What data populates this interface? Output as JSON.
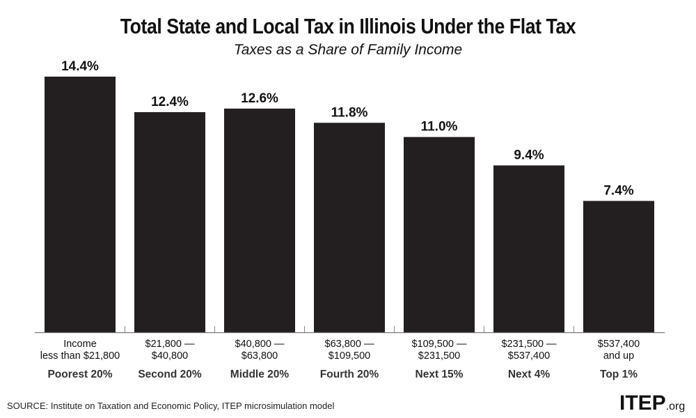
{
  "chart_data": {
    "type": "bar",
    "title": "Total State and Local Tax in Illinois Under the Flat Tax",
    "subtitle": "Taxes as a Share of Family Income",
    "categories": [
      "Income\nless than $21,800",
      "$21,800 —\n$40,800",
      "$40,800 —\n$63,800",
      "$63,800 —\n$109,500",
      "$109,500 —\n$231,500",
      "$231,500 —\n$537,400",
      "$537,400\nand up"
    ],
    "groups": [
      "Poorest 20%",
      "Second 20%",
      "Middle 20%",
      "Fourth 20%",
      "Next 15%",
      "Next 4%",
      "Top 1%"
    ],
    "values": [
      14.4,
      12.4,
      12.6,
      11.8,
      11.0,
      9.4,
      7.4
    ],
    "data_labels": [
      "14.4%",
      "12.4%",
      "12.6%",
      "11.8%",
      "11.0%",
      "9.4%",
      "7.4%"
    ],
    "ylim": [
      0,
      14.4
    ],
    "grid": false,
    "bar_color": "#231f20"
  },
  "source": "SOURCE: Institute on Taxation and Economic Policy, ITEP microsimulation model",
  "logo": {
    "main": "ITEP",
    "suffix": ".org"
  }
}
